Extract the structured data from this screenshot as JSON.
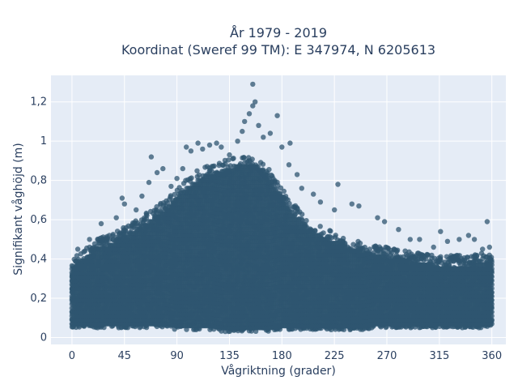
{
  "chart_data": {
    "type": "scatter",
    "title_line1": "År 1979 - 2019",
    "title_line2": "Koordinat (Sweref 99 TM): E 347974, N 6205613",
    "xlabel": "Vågriktning (grader)",
    "ylabel": "Signifikant våghöjd (m)",
    "xlim": [
      -18,
      372
    ],
    "ylim": [
      -0.035,
      1.335
    ],
    "x_ticks": [
      0,
      45,
      90,
      135,
      180,
      225,
      270,
      315,
      360
    ],
    "x_tick_labels": [
      "0",
      "45",
      "90",
      "135",
      "180",
      "225",
      "270",
      "315",
      "360"
    ],
    "y_ticks": [
      0,
      0.2,
      0.4,
      0.6,
      0.8,
      1.0,
      1.2
    ],
    "y_tick_labels": [
      "0",
      "0,2",
      "0,4",
      "0,6",
      "0,8",
      "1",
      "1,2"
    ],
    "grid": true,
    "marker_color": "#2f5670",
    "plot_bg": "#e5ecf6",
    "text_color": "#2a3f5f",
    "x_range_of_points": [
      0,
      360
    ],
    "point_cloud_envelope": {
      "x": [
        0,
        10,
        20,
        30,
        40,
        50,
        60,
        70,
        80,
        90,
        100,
        110,
        120,
        130,
        140,
        150,
        160,
        170,
        180,
        190,
        200,
        210,
        220,
        230,
        240,
        250,
        260,
        270,
        280,
        290,
        300,
        310,
        320,
        330,
        340,
        350,
        360
      ],
      "y_low": [
        0.05,
        0.05,
        0.05,
        0.05,
        0.05,
        0.05,
        0.05,
        0.05,
        0.05,
        0.04,
        0.04,
        0.04,
        0.04,
        0.03,
        0.03,
        0.03,
        0.03,
        0.03,
        0.04,
        0.04,
        0.04,
        0.04,
        0.04,
        0.04,
        0.04,
        0.04,
        0.05,
        0.05,
        0.05,
        0.05,
        0.05,
        0.05,
        0.05,
        0.05,
        0.05,
        0.05,
        0.05
      ],
      "y_high": [
        0.4,
        0.45,
        0.5,
        0.52,
        0.55,
        0.58,
        0.62,
        0.66,
        0.7,
        0.76,
        0.82,
        0.86,
        0.88,
        0.9,
        0.92,
        0.94,
        0.92,
        0.86,
        0.76,
        0.68,
        0.62,
        0.58,
        0.55,
        0.52,
        0.5,
        0.48,
        0.47,
        0.46,
        0.45,
        0.44,
        0.43,
        0.42,
        0.42,
        0.42,
        0.42,
        0.43,
        0.42
      ]
    },
    "outliers": [
      {
        "x": 5,
        "y": 0.45
      },
      {
        "x": 15,
        "y": 0.5
      },
      {
        "x": 25,
        "y": 0.58
      },
      {
        "x": 32,
        "y": 0.52
      },
      {
        "x": 38,
        "y": 0.61
      },
      {
        "x": 45,
        "y": 0.68
      },
      {
        "x": 43,
        "y": 0.71
      },
      {
        "x": 55,
        "y": 0.65
      },
      {
        "x": 60,
        "y": 0.72
      },
      {
        "x": 66,
        "y": 0.79
      },
      {
        "x": 68,
        "y": 0.92
      },
      {
        "x": 73,
        "y": 0.84
      },
      {
        "x": 78,
        "y": 0.86
      },
      {
        "x": 85,
        "y": 0.77
      },
      {
        "x": 90,
        "y": 0.81
      },
      {
        "x": 95,
        "y": 0.86
      },
      {
        "x": 98,
        "y": 0.97
      },
      {
        "x": 102,
        "y": 0.95
      },
      {
        "x": 108,
        "y": 0.99
      },
      {
        "x": 112,
        "y": 0.96
      },
      {
        "x": 118,
        "y": 0.98
      },
      {
        "x": 124,
        "y": 0.99
      },
      {
        "x": 128,
        "y": 0.97
      },
      {
        "x": 135,
        "y": 0.93
      },
      {
        "x": 142,
        "y": 1.0
      },
      {
        "x": 146,
        "y": 1.05
      },
      {
        "x": 148,
        "y": 1.1
      },
      {
        "x": 152,
        "y": 1.14
      },
      {
        "x": 155,
        "y": 1.18
      },
      {
        "x": 157,
        "y": 1.2
      },
      {
        "x": 155,
        "y": 1.29
      },
      {
        "x": 160,
        "y": 1.08
      },
      {
        "x": 164,
        "y": 1.02
      },
      {
        "x": 170,
        "y": 1.04
      },
      {
        "x": 176,
        "y": 1.13
      },
      {
        "x": 180,
        "y": 0.97
      },
      {
        "x": 187,
        "y": 0.99
      },
      {
        "x": 186,
        "y": 0.88
      },
      {
        "x": 193,
        "y": 0.83
      },
      {
        "x": 197,
        "y": 0.76
      },
      {
        "x": 207,
        "y": 0.73
      },
      {
        "x": 213,
        "y": 0.69
      },
      {
        "x": 225,
        "y": 0.65
      },
      {
        "x": 228,
        "y": 0.78
      },
      {
        "x": 240,
        "y": 0.68
      },
      {
        "x": 246,
        "y": 0.67
      },
      {
        "x": 262,
        "y": 0.61
      },
      {
        "x": 268,
        "y": 0.59
      },
      {
        "x": 280,
        "y": 0.55
      },
      {
        "x": 290,
        "y": 0.5
      },
      {
        "x": 298,
        "y": 0.5
      },
      {
        "x": 310,
        "y": 0.46
      },
      {
        "x": 316,
        "y": 0.54
      },
      {
        "x": 322,
        "y": 0.49
      },
      {
        "x": 332,
        "y": 0.5
      },
      {
        "x": 340,
        "y": 0.52
      },
      {
        "x": 345,
        "y": 0.5
      },
      {
        "x": 352,
        "y": 0.45
      },
      {
        "x": 356,
        "y": 0.59
      },
      {
        "x": 358,
        "y": 0.46
      }
    ]
  }
}
